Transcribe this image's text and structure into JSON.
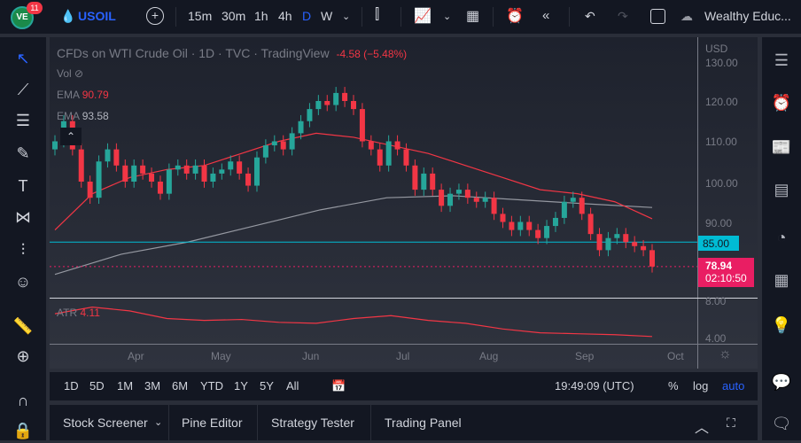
{
  "topbar": {
    "badge": "11",
    "symbol": "USOIL",
    "intervals": [
      "15m",
      "30m",
      "1h",
      "4h",
      "D",
      "W"
    ],
    "active_interval": "D",
    "layout_name": "Wealthy Educ..."
  },
  "legend": {
    "title": "CFDs on WTI Crude Oil · 1D · TVC · TradingView",
    "change": "-4.58 (−5.48%)",
    "vol": "Vol",
    "ema1_label": "EMA",
    "ema1_value": "90.79",
    "ema2_label": "EMA",
    "ema2_value": "93.58",
    "atr_label": "ATR",
    "atr_value": "4.11"
  },
  "price_axis": {
    "currency": "USD",
    "ticks": [
      "130.00",
      "120.00",
      "110.00",
      "100.00",
      "90.00"
    ],
    "line_label": "85.00",
    "last_price": "78.94",
    "countdown": "02:10:50",
    "atr_ticks": [
      "8.00",
      "4.00"
    ]
  },
  "time_axis": [
    "Apr",
    "May",
    "Jun",
    "Jul",
    "Aug",
    "Sep",
    "Oct"
  ],
  "range_bar": {
    "ranges": [
      "1D",
      "5D",
      "1M",
      "3M",
      "6M",
      "YTD",
      "1Y",
      "5Y",
      "All"
    ],
    "clock": "19:49:09 (UTC)",
    "percent": "%",
    "log": "log",
    "auto": "auto"
  },
  "bottom_tabs": [
    "Stock Screener",
    "Pine Editor",
    "Strategy Tester",
    "Trading Panel"
  ],
  "colors": {
    "up": "#26a69a",
    "down": "#f23645",
    "ema_fast": "#f23645",
    "ema_slow": "#9598a1",
    "hline": "#00bcd4",
    "last": "#e91e63",
    "accent": "#2962ff"
  },
  "chart_data": {
    "type": "candlestick",
    "closes": [
      110,
      115,
      108,
      100,
      96,
      105,
      108,
      104,
      100,
      104,
      102,
      100,
      97,
      103,
      104,
      102,
      104,
      100,
      102,
      103,
      105,
      102,
      99,
      106,
      109,
      110,
      108,
      112,
      115,
      118,
      120,
      119,
      122,
      120,
      118,
      110,
      108,
      104,
      110,
      108,
      104,
      98,
      102,
      98,
      94,
      97,
      98,
      96,
      95,
      96,
      92,
      90,
      88,
      90,
      88,
      86,
      89,
      91,
      95,
      96,
      92,
      87,
      83,
      86,
      87,
      85,
      84,
      83,
      78.94
    ],
    "ema_fast": [
      88,
      97,
      101,
      103,
      104,
      107,
      110,
      112,
      111,
      109,
      107,
      104,
      101,
      98,
      97,
      95,
      90.79
    ],
    "ema_slow": [
      77,
      82,
      85,
      89,
      93,
      96,
      96.5,
      95.5,
      94.5,
      93.58
    ],
    "atr": [
      6.5,
      7.2,
      6.8,
      6.0,
      5.8,
      5.9,
      5.6,
      5.5,
      6.0,
      6.3,
      5.8,
      5.5,
      4.9,
      4.5,
      4.4,
      4.3,
      4.11
    ],
    "hline": 85
  }
}
